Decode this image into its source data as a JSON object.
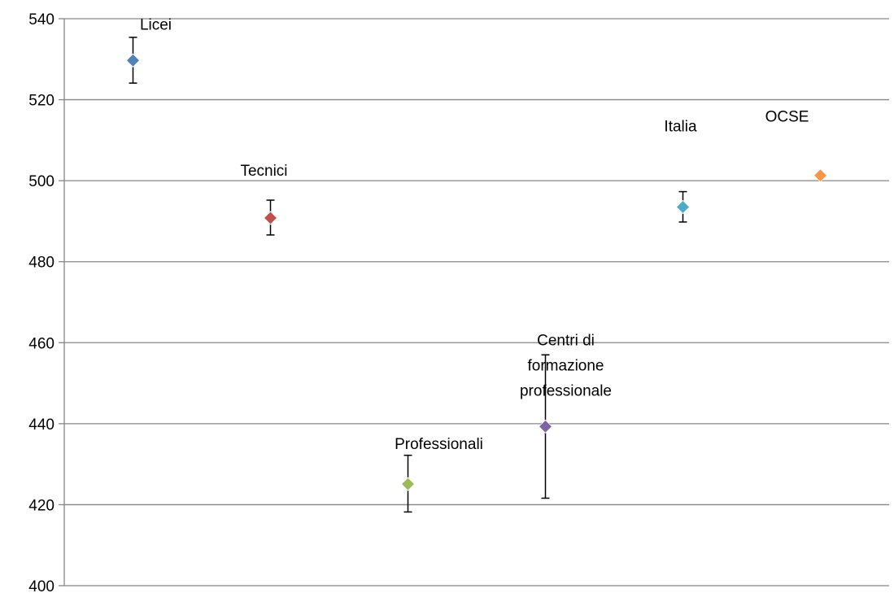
{
  "chart_data": {
    "type": "scatter",
    "title": "",
    "xlabel": "",
    "ylabel": "",
    "ylim": [
      400,
      540
    ],
    "ytick_step": 20,
    "grid": true,
    "legend": "none",
    "points": [
      {
        "label": "Licei",
        "value": 529.7,
        "err_low": 524.1,
        "err_high": 535.4,
        "color": "#4f81bd"
      },
      {
        "label": "Tecnici",
        "value": 490.8,
        "err_low": 486.6,
        "err_high": 495.2,
        "color": "#c0504d"
      },
      {
        "label": "Professionali",
        "value": 425.1,
        "err_low": 418.2,
        "err_high": 432.2,
        "color": "#9bbb59"
      },
      {
        "label": "Centri di formazione professionale",
        "label_lines": [
          "Centri di",
          "formazione",
          "professionale"
        ],
        "value": 439.3,
        "err_low": 421.6,
        "err_high": 457.0,
        "color": "#8064a2"
      },
      {
        "label": "Italia",
        "value": 493.5,
        "err_low": 489.8,
        "err_high": 497.3,
        "color": "#4bacc6"
      },
      {
        "label": "OCSE",
        "value": 501.3,
        "color": "#f79646"
      }
    ]
  }
}
